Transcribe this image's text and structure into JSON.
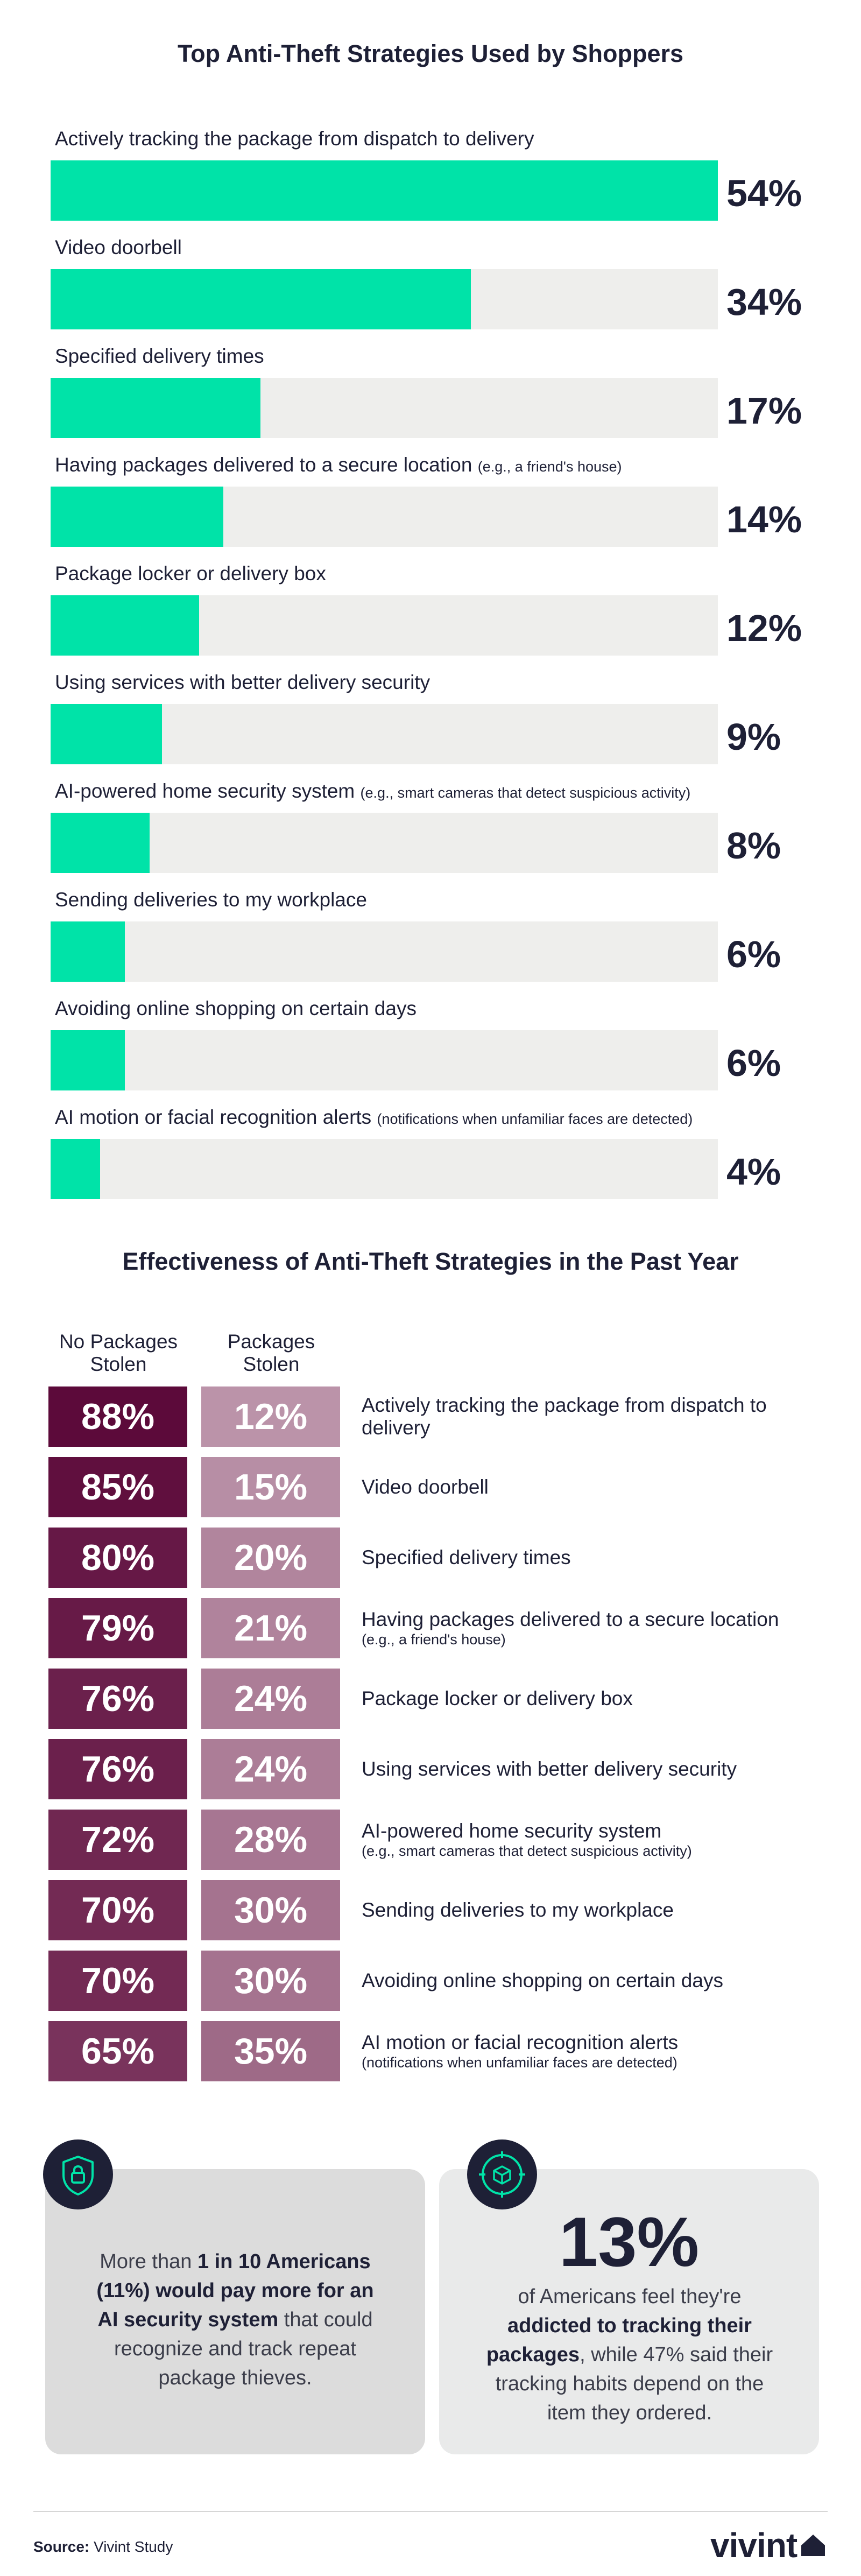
{
  "chart_data": [
    {
      "type": "bar",
      "title": "Top Anti-Theft Strategies Used by Shoppers",
      "categories": [
        {
          "label": "Actively tracking the package from dispatch to delivery",
          "note": ""
        },
        {
          "label": "Video doorbell",
          "note": ""
        },
        {
          "label": "Specified delivery times",
          "note": ""
        },
        {
          "label": "Having packages delivered to a secure location",
          "note": "(e.g., a friend's house)"
        },
        {
          "label": "Package locker or delivery box",
          "note": ""
        },
        {
          "label": "Using services with better delivery security",
          "note": ""
        },
        {
          "label": "AI-powered home security system",
          "note": "(e.g., smart cameras that detect suspicious activity)"
        },
        {
          "label": "Sending deliveries to my workplace",
          "note": ""
        },
        {
          "label": "Avoiding online shopping on certain days",
          "note": ""
        },
        {
          "label": "AI motion or facial recognition alerts",
          "note": "(notifications when unfamiliar faces are detected)"
        }
      ],
      "values": [
        54,
        34,
        17,
        14,
        12,
        9,
        8,
        6,
        6,
        4
      ],
      "value_labels": [
        "54%",
        "34%",
        "17%",
        "14%",
        "12%",
        "9%",
        "8%",
        "6%",
        "6%",
        "4%"
      ],
      "unit": "%",
      "orientation": "horizontal",
      "xlim": [
        0,
        54
      ],
      "colors": {
        "fill": "#00e3a8",
        "track": "#eeeeec"
      }
    },
    {
      "type": "table",
      "title": "Effectiveness of Anti-Theft Strategies in the Past Year",
      "columns": [
        "No Packages Stolen",
        "Packages Stolen"
      ],
      "rows": [
        {
          "label": "Actively tracking the package from dispatch to delivery",
          "note": "",
          "no_stolen": "88%",
          "stolen": "12%"
        },
        {
          "label": "Video doorbell",
          "note": "",
          "no_stolen": "85%",
          "stolen": "15%"
        },
        {
          "label": "Specified delivery times",
          "note": "",
          "no_stolen": "80%",
          "stolen": "20%"
        },
        {
          "label": "Having packages delivered to a secure location",
          "note": "(e.g., a friend's house)",
          "no_stolen": "79%",
          "stolen": "21%"
        },
        {
          "label": "Package locker or delivery box",
          "note": "",
          "no_stolen": "76%",
          "stolen": "24%"
        },
        {
          "label": "Using services with better delivery security",
          "note": "",
          "no_stolen": "76%",
          "stolen": "24%"
        },
        {
          "label": "AI-powered home security system",
          "note": "(e.g., smart cameras that detect suspicious activity)",
          "no_stolen": "72%",
          "stolen": "28%"
        },
        {
          "label": "Sending deliveries to my workplace",
          "note": "",
          "no_stolen": "70%",
          "stolen": "30%"
        },
        {
          "label": "Avoiding online shopping on certain days",
          "note": "",
          "no_stolen": "70%",
          "stolen": "30%"
        },
        {
          "label": "AI motion or facial recognition alerts",
          "note": "(notifications when unfamiliar faces are detected)",
          "no_stolen": "65%",
          "stolen": "35%"
        }
      ],
      "colors": {
        "dark": "#5c0a3a",
        "light": "#bb93a9"
      }
    }
  ],
  "callouts": {
    "left": {
      "icon": "shield-lock-icon",
      "pre": "More than ",
      "bold1": "1 in 10 Americans (11%) would pay more for an AI security system",
      "post": " that could recognize and track repeat package thieves."
    },
    "right": {
      "icon": "target-package-icon",
      "number": "13%",
      "pre": "of Americans feel they're ",
      "bold1": "addicted to tracking their packages",
      "post": ", while 47% said their tracking habits depend on the item they ordered."
    }
  },
  "footer": {
    "source_label": "Source:",
    "source_text": " Vivint Study",
    "logo": "vivint"
  }
}
